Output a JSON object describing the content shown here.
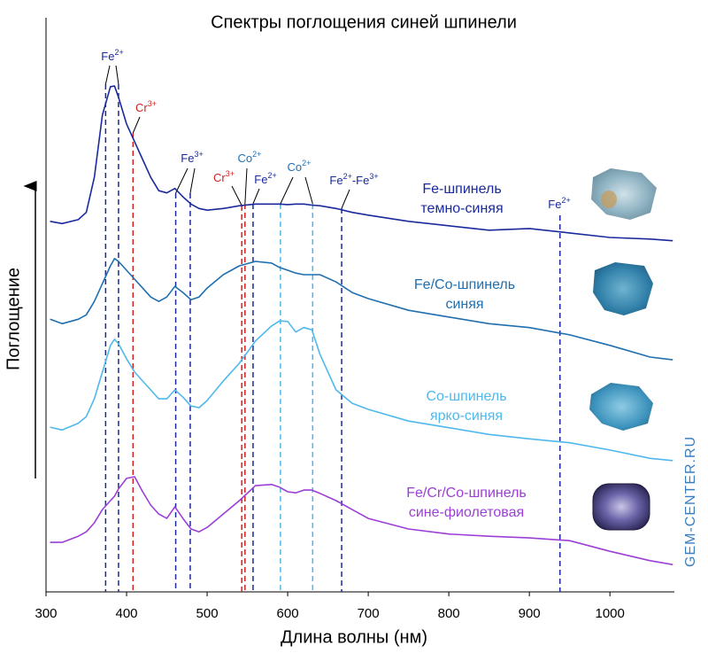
{
  "chart_data": {
    "type": "line",
    "title": "Спектры поглощения синей шпинели",
    "x_label": "Длина волны (нм)",
    "y_label": "Поглощение",
    "watermark": "GEM-CENTER.RU",
    "xlim": [
      300,
      1080
    ],
    "ylim": [
      0,
      100
    ],
    "xticks": [
      300,
      400,
      500,
      600,
      700,
      800,
      900,
      1000
    ],
    "x": [
      305,
      320,
      340,
      350,
      360,
      370,
      380,
      385,
      390,
      400,
      410,
      420,
      430,
      440,
      450,
      460,
      470,
      480,
      490,
      500,
      520,
      540,
      560,
      580,
      590,
      600,
      610,
      620,
      630,
      640,
      660,
      680,
      700,
      750,
      800,
      850,
      900,
      950,
      1000,
      1050,
      1078
    ],
    "series": [
      {
        "name": "Fe-шпинель",
        "description": "темно-синяя",
        "color": "#1a2a9c",
        "values": [
          66.6,
          66.2,
          66.9,
          68.2,
          74.5,
          85.7,
          90.8,
          90.9,
          88.9,
          84.1,
          80.9,
          77.7,
          74.5,
          72.1,
          71.7,
          72.5,
          71.0,
          69.7,
          68.9,
          68.6,
          68.9,
          69.4,
          69.7,
          69.7,
          69.7,
          69.6,
          69.7,
          69.7,
          69.5,
          69.4,
          68.9,
          68.2,
          67.7,
          66.6,
          65.8,
          65.0,
          65.3,
          64.5,
          63.7,
          63.4,
          63.1
        ]
      },
      {
        "name": "Fe/Co-шпинель",
        "description": "синяя",
        "color": "#1f6fb0",
        "values": [
          49.0,
          48.2,
          49.0,
          49.8,
          52.2,
          55.4,
          58.6,
          59.9,
          59.4,
          57.8,
          56.2,
          54.6,
          53.0,
          52.2,
          53.0,
          54.9,
          53.8,
          52.5,
          53.0,
          54.6,
          57.0,
          58.6,
          59.4,
          59.1,
          58.3,
          57.8,
          57.3,
          57.0,
          57.0,
          57.0,
          55.7,
          53.8,
          52.7,
          50.6,
          49.4,
          48.2,
          47.5,
          46.2,
          44.3,
          42.2,
          41.7
        ]
      },
      {
        "name": "Co-шпинель",
        "description": "ярко-синяя",
        "color": "#4fb8ec",
        "values": [
          29.6,
          29.1,
          30.3,
          31.5,
          34.7,
          39.5,
          44.3,
          45.4,
          44.6,
          41.9,
          39.5,
          37.9,
          36.3,
          34.7,
          34.7,
          36.3,
          35.0,
          33.4,
          33.1,
          34.4,
          37.9,
          41.1,
          45.1,
          47.8,
          48.7,
          48.6,
          46.7,
          47.5,
          47.1,
          42.7,
          36.3,
          33.9,
          32.8,
          30.7,
          29.5,
          28.3,
          27.5,
          26.8,
          25.5,
          24.0,
          23.6
        ]
      },
      {
        "name": "Fe/Cr/Co-шпинель",
        "description": "сине-фиолетовая",
        "color": "#9b3fd6",
        "values": [
          8.9,
          8.9,
          10.0,
          10.8,
          12.4,
          14.8,
          16.4,
          17.2,
          18.5,
          20.4,
          20.7,
          18.0,
          15.6,
          14.0,
          13.2,
          15.3,
          13.2,
          11.3,
          10.8,
          11.6,
          14.0,
          16.4,
          19.1,
          19.3,
          18.8,
          18.0,
          17.8,
          18.3,
          18.3,
          17.7,
          16.4,
          14.8,
          13.2,
          11.3,
          10.4,
          10.0,
          9.7,
          9.2,
          7.3,
          5.6,
          4.9
        ]
      }
    ],
    "annotations": [
      {
        "parts": [
          [
            "Fe",
            "2+"
          ]
        ],
        "color": "#1a2a9c",
        "line_color": "#1a2a9c",
        "x": [
          374,
          390
        ]
      },
      {
        "parts": [
          [
            "Cr",
            "3+"
          ]
        ],
        "color": "#d42020",
        "line_color": "#d42020",
        "x": [
          408
        ]
      },
      {
        "parts": [
          [
            "Fe",
            "3+"
          ]
        ],
        "color": "#1a2a9c",
        "line_color": "#1a2a9c",
        "x": [
          461,
          479
        ]
      },
      {
        "parts": [
          [
            "Co",
            "2+"
          ]
        ],
        "color": "#1f6fb0",
        "line_color": "#d42020",
        "x": [
          547
        ]
      },
      {
        "parts": [
          [
            "Cr",
            "3+"
          ]
        ],
        "color": "#d42020",
        "line_color": "#d42020",
        "x": [
          543
        ]
      },
      {
        "parts": [
          [
            "Fe",
            "2+"
          ]
        ],
        "color": "#1a2a9c",
        "line_color": "#1a2a9c",
        "x": [
          557
        ]
      },
      {
        "parts": [
          [
            "Co",
            "2+"
          ]
        ],
        "color": "#1f6fb0",
        "line_color": "#4fb8ec",
        "x": [
          591,
          631
        ]
      },
      {
        "parts": [
          [
            "Fe",
            "2+"
          ],
          [
            "-Fe",
            "3+"
          ]
        ],
        "color": "#1a2a9c",
        "line_color": "#1a2a9c",
        "x": [
          667
        ]
      },
      {
        "parts": [
          [
            "Fe",
            "2+"
          ]
        ],
        "color": "#1a2a9c",
        "line_color": "#1a2a9c",
        "x": [
          938
        ]
      }
    ]
  }
}
